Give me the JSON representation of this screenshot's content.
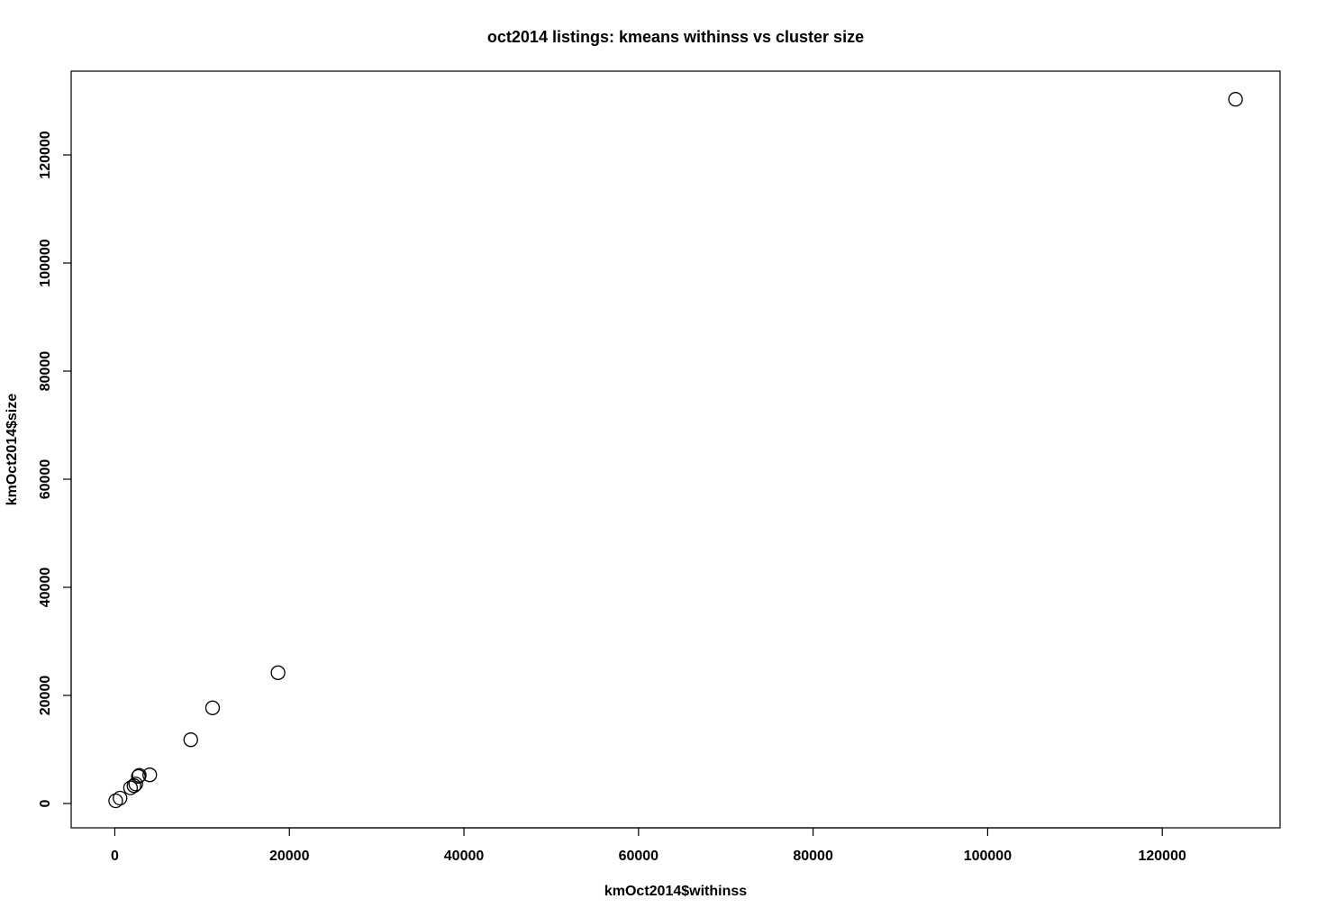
{
  "chart_data": {
    "type": "scatter",
    "title": "oct2014 listings: kmeans withinss vs cluster size",
    "xlabel": "kmOct2014$withinss",
    "ylabel": "kmOct2014$size",
    "xlim": [
      -5000,
      133500
    ],
    "ylim": [
      -4500,
      135500
    ],
    "x_ticks": [
      0,
      20000,
      40000,
      60000,
      80000,
      100000,
      120000
    ],
    "y_ticks": [
      0,
      20000,
      40000,
      60000,
      80000,
      100000,
      120000
    ],
    "x_tick_labels": [
      "0",
      "20000",
      "40000",
      "60000",
      "80000",
      "100000",
      "120000"
    ],
    "y_tick_labels": [
      "0",
      "20000",
      "40000",
      "60000",
      "80000",
      "100000",
      "120000"
    ],
    "grid": false,
    "marker": "open-circle",
    "points": [
      {
        "x": 100,
        "y": 500
      },
      {
        "x": 600,
        "y": 1000
      },
      {
        "x": 1800,
        "y": 2900
      },
      {
        "x": 2200,
        "y": 3300
      },
      {
        "x": 2400,
        "y": 3600
      },
      {
        "x": 2700,
        "y": 5000
      },
      {
        "x": 2800,
        "y": 5200
      },
      {
        "x": 4000,
        "y": 5300
      },
      {
        "x": 8700,
        "y": 11800
      },
      {
        "x": 11200,
        "y": 17700
      },
      {
        "x": 18700,
        "y": 24200
      },
      {
        "x": 128400,
        "y": 130300
      }
    ]
  }
}
